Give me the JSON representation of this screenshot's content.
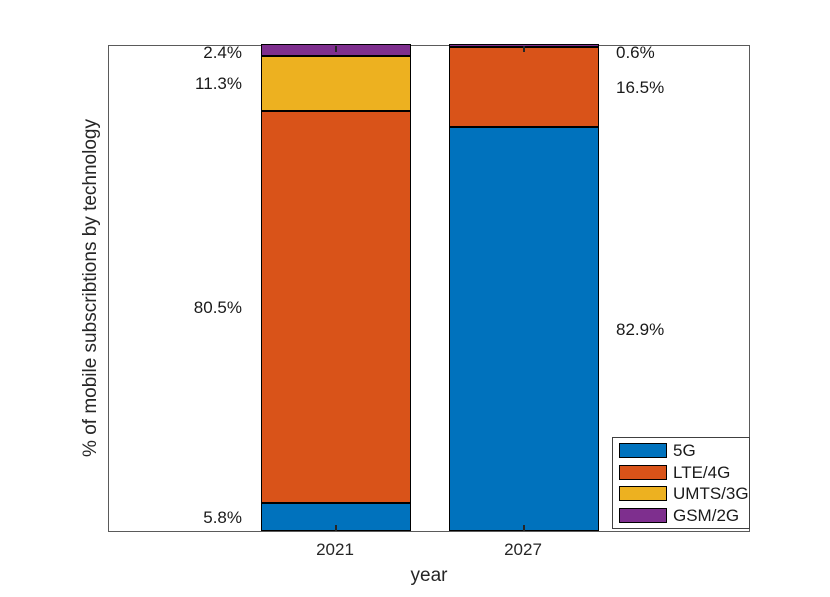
{
  "chart_data": {
    "type": "bar",
    "variant": "stacked-percentage",
    "categories": [
      "2021",
      "2027"
    ],
    "series": [
      {
        "name": "5G",
        "color": "#0072BD",
        "values": [
          5.8,
          82.9
        ],
        "labels": [
          "5.8%",
          "82.9%"
        ]
      },
      {
        "name": "LTE/4G",
        "color": "#D95319",
        "values": [
          80.5,
          16.5
        ],
        "labels": [
          "80.5%",
          "16.5%"
        ]
      },
      {
        "name": "UMTS/3G",
        "color": "#EDB120",
        "values": [
          11.3,
          0
        ],
        "labels": [
          "11.3%",
          ""
        ]
      },
      {
        "name": "GSM/2G",
        "color": "#7E2F8E",
        "values": [
          2.4,
          0.6
        ],
        "labels": [
          "2.4%",
          "0.6%"
        ]
      }
    ],
    "title": "",
    "xlabel": "year",
    "ylabel": "% of mobile subscribtions by technology",
    "ylim": [
      0,
      100
    ],
    "grid": false,
    "legend_position": "bottom-right-inside",
    "bar_edge_color": "#000000",
    "axis_color": "#5a5a5a"
  }
}
